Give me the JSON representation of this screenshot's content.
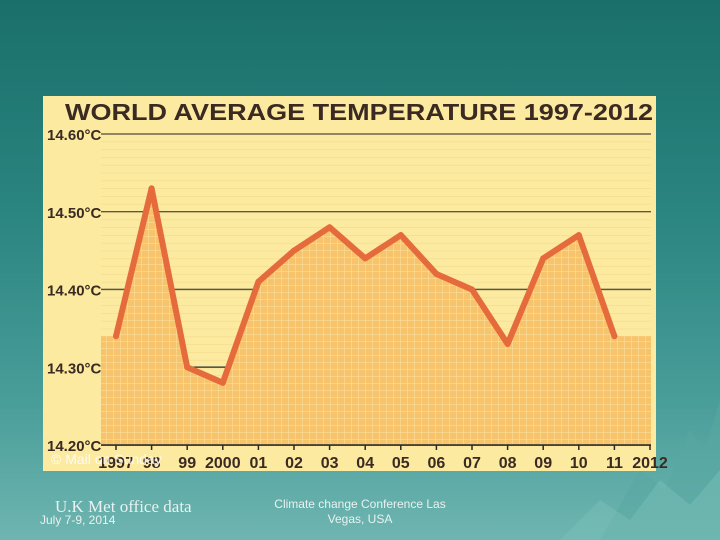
{
  "colors": {
    "panel_bg": "#fbeaa0",
    "area_fill": "#f7c46b",
    "line": "#e56a3c",
    "grid_major": "#2a2a2a",
    "title": "#3a2a22",
    "slide_top": "#1a6f6a",
    "slide_bottom": "#6fb5b1"
  },
  "credit": "© Mail on Sunday",
  "footer": {
    "source": "U.K Met office data",
    "date": "July 7-9, 2014",
    "conference": "Climate change Conference Las Vegas, USA"
  },
  "chart_data": {
    "type": "area",
    "title": "WORLD AVERAGE TEMPERATURE 1997-2012",
    "x": [
      "1997",
      "98",
      "99",
      "2000",
      "01",
      "02",
      "03",
      "04",
      "05",
      "06",
      "07",
      "08",
      "09",
      "10",
      "11",
      "2012"
    ],
    "y_ticks": [
      "14.60°C",
      "14.50°C",
      "14.40°C",
      "14.30°C",
      "14.20°C"
    ],
    "ylim": [
      14.2,
      14.6
    ],
    "series": [
      {
        "values": [
          14.34,
          14.53,
          14.3,
          14.28,
          14.41,
          14.45,
          14.48,
          14.44,
          14.47,
          14.42,
          14.4,
          14.33,
          14.44,
          14.47,
          14.34,
          null
        ]
      }
    ],
    "grid": true,
    "legend": "none"
  }
}
